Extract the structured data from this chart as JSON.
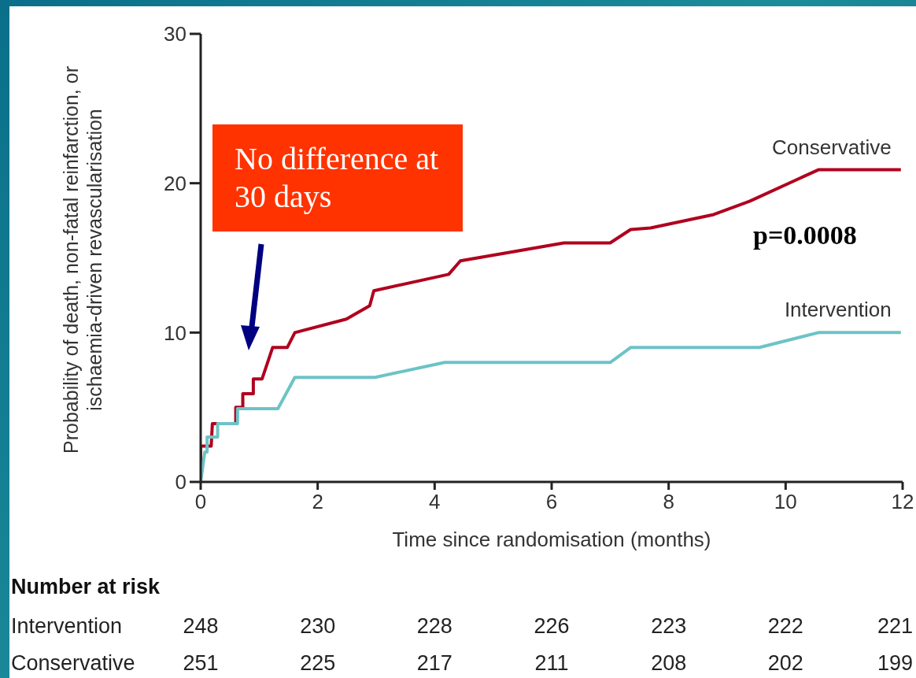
{
  "chart_data": {
    "type": "line",
    "xlabel": "Time since randomisation (months)",
    "ylabel": "Probability of death, non-fatal reinfarction, or ischaemia-driven revascularisation",
    "xlim": [
      0,
      12
    ],
    "xticks": [
      0,
      2,
      4,
      6,
      8,
      10,
      12
    ],
    "ylim": [
      0,
      30
    ],
    "yticks": [
      0,
      10,
      20,
      30
    ],
    "grid": false,
    "legend": false,
    "marker": "none",
    "line_style": "solid",
    "series": [
      {
        "name": "Conservative",
        "color": "#b0001e",
        "x": [
          0,
          0,
          0.18,
          0.2,
          0.6,
          0.6,
          0.72,
          0.72,
          0.9,
          0.9,
          1.05,
          1.23,
          1.48,
          1.61,
          2.49,
          2.89,
          2.96,
          4.24,
          4.44,
          5.18,
          6.21,
          7.0,
          7.35,
          7.69,
          8.77,
          9.39,
          10.56,
          11.97
        ],
        "values": [
          0,
          2.4,
          2.4,
          3.9,
          3.9,
          5.0,
          5.0,
          5.9,
          5.9,
          6.9,
          6.9,
          9.0,
          9.0,
          10.0,
          10.9,
          11.8,
          12.8,
          13.9,
          14.8,
          15.3,
          16.0,
          16.0,
          16.9,
          17.0,
          17.9,
          18.8,
          20.9,
          20.9
        ]
      },
      {
        "name": "Intervention",
        "color": "#6cc3c6",
        "x": [
          0,
          0.07,
          0.11,
          0.11,
          0.29,
          0.29,
          0.63,
          0.63,
          1.32,
          1.61,
          2.98,
          4.17,
          5.18,
          7.0,
          7.35,
          9.55,
          10.56,
          11.97
        ],
        "values": [
          0,
          2.0,
          2.0,
          3.0,
          3.0,
          3.9,
          3.9,
          4.9,
          4.9,
          7.0,
          7.0,
          8.0,
          8.0,
          8.0,
          9.0,
          9.0,
          10.0,
          10.0
        ]
      }
    ],
    "annotations": [
      "No difference at 30 days",
      "p=0.0008",
      "Number at risk",
      "Intervention",
      "248",
      "230",
      "228",
      "226",
      "223",
      "222",
      "221",
      "Conservative",
      "251",
      "225",
      "217",
      "211",
      "208",
      "202",
      "199"
    ]
  }
}
